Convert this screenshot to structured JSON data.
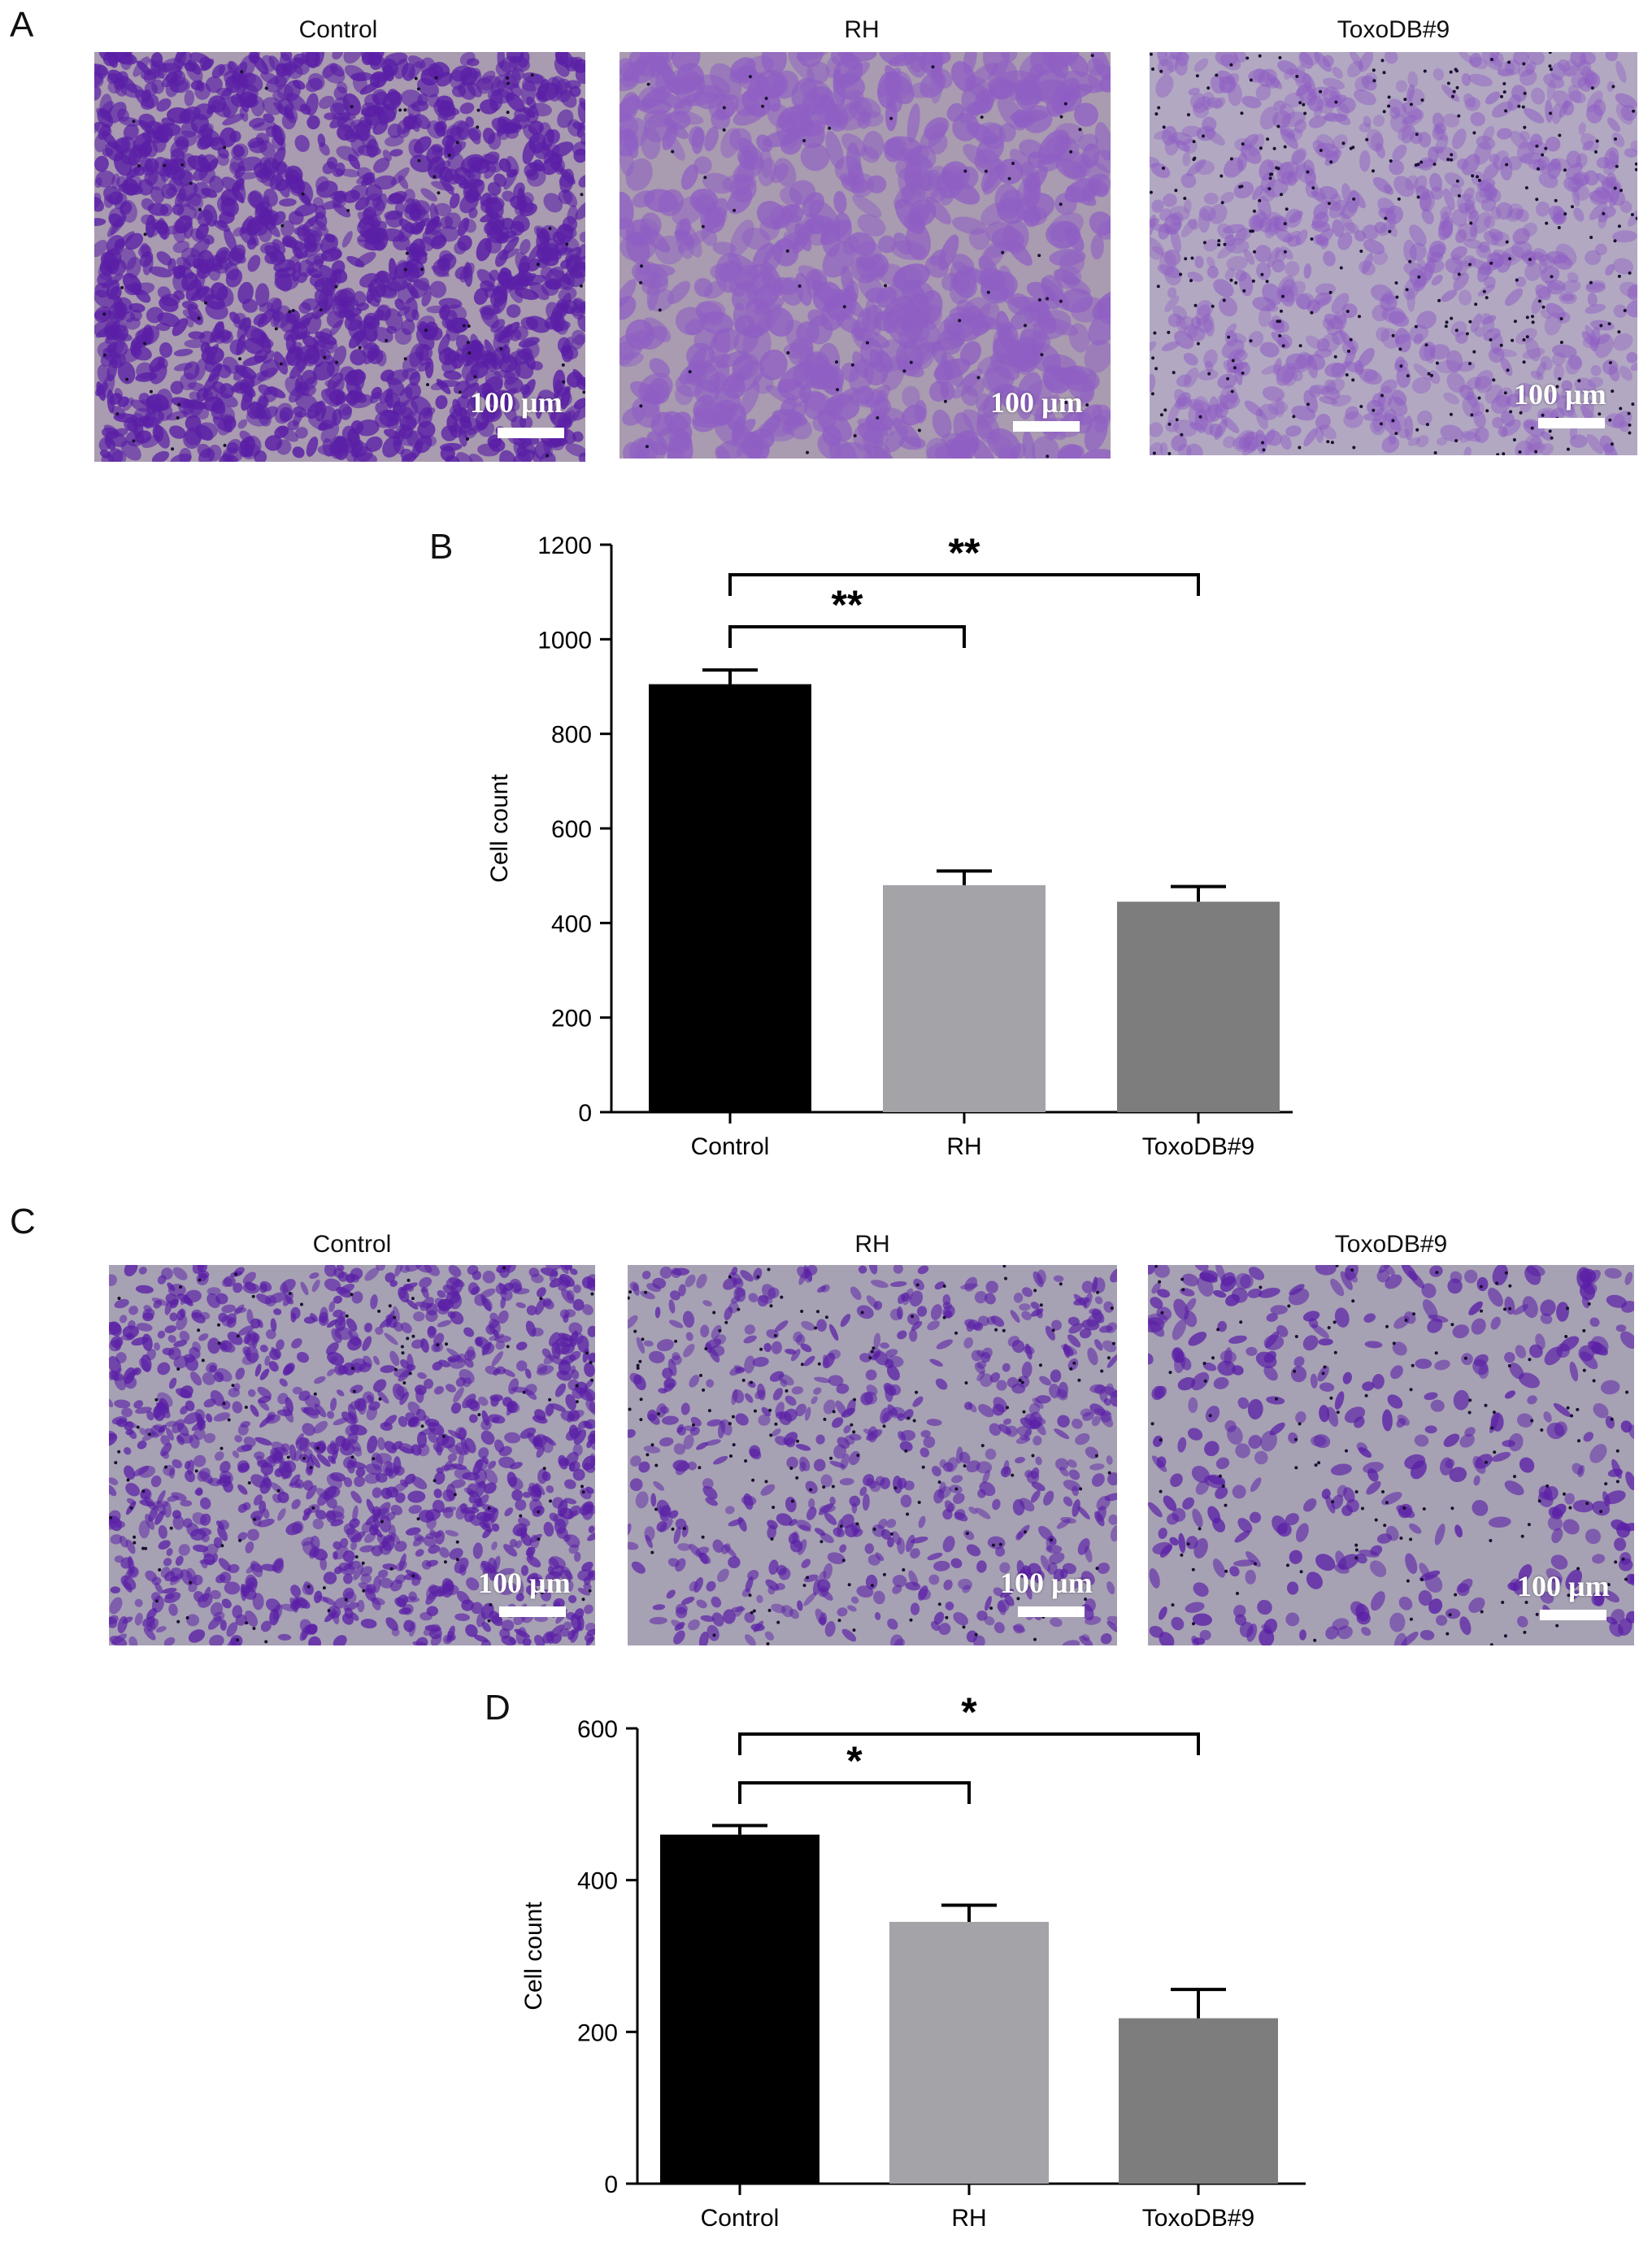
{
  "figure": {
    "panel_a": {
      "letter": "A",
      "images": [
        {
          "title": "Control",
          "scale_label": "100 µm"
        },
        {
          "title": "RH",
          "scale_label": "100 µm"
        },
        {
          "title": "ToxoDB#9",
          "scale_label": "100 µm"
        }
      ]
    },
    "panel_c": {
      "letter": "C",
      "images": [
        {
          "title": "Control",
          "scale_label": "100 µm"
        },
        {
          "title": "RH",
          "scale_label": "100 µm"
        },
        {
          "title": "ToxoDB#9",
          "scale_label": "100 µm"
        }
      ]
    }
  },
  "colors": {
    "stain_dense": "#5a1fa6",
    "stain_light": "#8f5fc4",
    "membrane_a": "#a99bb0",
    "membrane_c": "#a7a1b4",
    "bar_control": "#000000",
    "bar_rh": "#a3a3a8",
    "bar_toxo": "#7d7d7d"
  },
  "chart_data": [
    {
      "panel": "B",
      "type": "bar",
      "categories": [
        "Control",
        "RH",
        "ToxoDB#9"
      ],
      "values": [
        905,
        480,
        445
      ],
      "errors": [
        30,
        30,
        32
      ],
      "ylabel": "Cell count",
      "ylim": [
        0,
        1200
      ],
      "yticks": [
        0,
        200,
        400,
        600,
        800,
        1000,
        1200
      ],
      "significance": [
        {
          "from": "Control",
          "to": "RH",
          "label": "**"
        },
        {
          "from": "Control",
          "to": "ToxoDB#9",
          "label": "**"
        }
      ]
    },
    {
      "panel": "D",
      "type": "bar",
      "categories": [
        "Control",
        "RH",
        "ToxoDB#9"
      ],
      "values": [
        460,
        345,
        218
      ],
      "errors": [
        12,
        22,
        38
      ],
      "ylabel": "Cell count",
      "ylim": [
        0,
        600
      ],
      "yticks": [
        0,
        200,
        400,
        600
      ],
      "significance": [
        {
          "from": "Control",
          "to": "RH",
          "label": "*"
        },
        {
          "from": "Control",
          "to": "ToxoDB#9",
          "label": "*"
        }
      ]
    }
  ]
}
